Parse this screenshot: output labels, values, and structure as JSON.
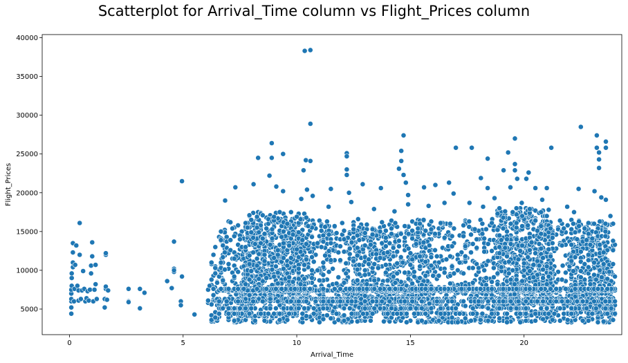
{
  "chart_data": {
    "type": "scatter",
    "title": "Scatterplot for Arrival_Time column vs Flight_Prices column",
    "xlabel": "Arrival_Time",
    "ylabel": "Flight_Prices",
    "xlim": [
      -1.2,
      24.3
    ],
    "ylim": [
      1700,
      40400
    ],
    "xticks": [
      0,
      5,
      10,
      15,
      20,
      25
    ],
    "yticks": [
      5000,
      10000,
      15000,
      20000,
      25000,
      30000,
      35000,
      40000
    ],
    "grid": false,
    "color": "#1f77b4",
    "series": [
      {
        "points": [
          [
            0.08,
            4400
          ],
          [
            0.08,
            5200
          ],
          [
            0.08,
            6000
          ],
          [
            0.08,
            6300
          ],
          [
            0.08,
            7000
          ],
          [
            0.08,
            7500
          ],
          [
            0.1,
            8000
          ],
          [
            0.1,
            9000
          ],
          [
            0.1,
            9600
          ],
          [
            0.15,
            10400
          ],
          [
            0.15,
            11000
          ],
          [
            0.15,
            12300
          ],
          [
            0.15,
            13500
          ],
          [
            0.2,
            6000
          ],
          [
            0.22,
            7600
          ],
          [
            0.25,
            10700
          ],
          [
            0.3,
            13200
          ],
          [
            0.35,
            8000
          ],
          [
            0.4,
            6100
          ],
          [
            0.4,
            7400
          ],
          [
            0.45,
            12000
          ],
          [
            0.45,
            16100
          ],
          [
            0.5,
            6300
          ],
          [
            0.55,
            7400
          ],
          [
            0.6,
            9900
          ],
          [
            0.65,
            7600
          ],
          [
            0.7,
            6000
          ],
          [
            0.75,
            6400
          ],
          [
            0.8,
            7300
          ],
          [
            0.85,
            6100
          ],
          [
            0.9,
            7500
          ],
          [
            0.95,
            9600
          ],
          [
            0.95,
            10600
          ],
          [
            1.0,
            11800
          ],
          [
            1.0,
            13600
          ],
          [
            1.05,
            6000
          ],
          [
            1.1,
            7500
          ],
          [
            1.15,
            8200
          ],
          [
            1.15,
            10700
          ],
          [
            1.2,
            6300
          ],
          [
            1.55,
            5200
          ],
          [
            1.55,
            6300
          ],
          [
            1.6,
            7600
          ],
          [
            1.6,
            7900
          ],
          [
            1.6,
            12000
          ],
          [
            1.6,
            12200
          ],
          [
            1.65,
            6200
          ],
          [
            1.7,
            7400
          ],
          [
            2.6,
            6000
          ],
          [
            2.6,
            7600
          ],
          [
            2.6,
            5900
          ],
          [
            3.1,
            5100
          ],
          [
            3.1,
            7600
          ],
          [
            3.3,
            7100
          ],
          [
            4.3,
            8600
          ],
          [
            4.5,
            7700
          ],
          [
            4.6,
            9800
          ],
          [
            4.6,
            10200
          ],
          [
            4.6,
            13700
          ],
          [
            4.6,
            10000
          ],
          [
            4.9,
            6000
          ],
          [
            4.9,
            5500
          ],
          [
            4.95,
            9200
          ],
          [
            4.95,
            21500
          ],
          [
            5.5,
            4300
          ],
          [
            6.1,
            5800
          ],
          [
            6.1,
            7500
          ],
          [
            6.1,
            6100
          ],
          [
            6.35,
            3400
          ],
          [
            6.4,
            7800
          ],
          [
            6.45,
            4500
          ],
          [
            6.5,
            7200
          ],
          [
            6.6,
            5400
          ],
          [
            6.7,
            9000
          ],
          [
            6.7,
            11500
          ],
          [
            6.8,
            13800
          ],
          [
            6.85,
            19000
          ],
          [
            6.9,
            4400
          ],
          [
            7.0,
            3600
          ],
          [
            7.0,
            10200
          ],
          [
            7.1,
            5800
          ],
          [
            7.2,
            4500
          ],
          [
            7.3,
            8300
          ],
          [
            7.3,
            14700
          ],
          [
            7.3,
            20700
          ],
          [
            7.4,
            6200
          ],
          [
            7.5,
            7000
          ],
          [
            7.6,
            12000
          ],
          [
            7.7,
            4600
          ],
          [
            7.8,
            9300
          ],
          [
            7.9,
            15900
          ],
          [
            8.0,
            4300
          ],
          [
            8.0,
            6800
          ],
          [
            8.1,
            21100
          ],
          [
            8.1,
            13300
          ],
          [
            8.2,
            10000
          ],
          [
            8.3,
            24500
          ],
          [
            8.3,
            17500
          ],
          [
            8.4,
            7800
          ],
          [
            8.5,
            11700
          ],
          [
            8.6,
            5800
          ],
          [
            8.7,
            14800
          ],
          [
            8.8,
            22200
          ],
          [
            8.9,
            26400
          ],
          [
            8.9,
            24500
          ],
          [
            9.0,
            9500
          ],
          [
            9.1,
            20800
          ],
          [
            9.2,
            12700
          ],
          [
            9.3,
            16600
          ],
          [
            9.4,
            25000
          ],
          [
            9.4,
            20200
          ],
          [
            9.5,
            13900
          ],
          [
            9.6,
            11000
          ],
          [
            9.7,
            8200
          ],
          [
            9.8,
            16600
          ],
          [
            9.9,
            5600
          ],
          [
            10.0,
            4200
          ],
          [
            10.2,
            19200
          ],
          [
            10.3,
            22900
          ],
          [
            10.35,
            38300
          ],
          [
            10.4,
            24200
          ],
          [
            10.45,
            20400
          ],
          [
            10.5,
            11100
          ],
          [
            10.6,
            38400
          ],
          [
            10.6,
            28900
          ],
          [
            10.6,
            24100
          ],
          [
            10.7,
            19600
          ],
          [
            10.7,
            16400
          ],
          [
            10.8,
            7900
          ],
          [
            10.9,
            13200
          ],
          [
            11.0,
            4500
          ],
          [
            11.2,
            10200
          ],
          [
            11.4,
            18200
          ],
          [
            11.5,
            20500
          ],
          [
            11.7,
            14700
          ],
          [
            11.9,
            6000
          ],
          [
            12.0,
            3800
          ],
          [
            12.2,
            25100
          ],
          [
            12.2,
            24700
          ],
          [
            12.2,
            23000
          ],
          [
            12.2,
            22300
          ],
          [
            12.3,
            20000
          ],
          [
            12.4,
            18800
          ],
          [
            12.6,
            9800
          ],
          [
            12.7,
            16600
          ],
          [
            12.9,
            21100
          ],
          [
            13.0,
            5200
          ],
          [
            13.2,
            12800
          ],
          [
            13.4,
            17900
          ],
          [
            13.6,
            14700
          ],
          [
            13.7,
            20600
          ],
          [
            13.8,
            8600
          ],
          [
            13.9,
            3600
          ],
          [
            14.1,
            11400
          ],
          [
            14.3,
            17600
          ],
          [
            14.5,
            23100
          ],
          [
            14.6,
            24100
          ],
          [
            14.6,
            25400
          ],
          [
            14.7,
            27400
          ],
          [
            14.7,
            22300
          ],
          [
            14.8,
            21300
          ],
          [
            14.9,
            19700
          ],
          [
            14.9,
            18500
          ],
          [
            15.0,
            10900
          ],
          [
            15.2,
            4100
          ],
          [
            15.4,
            13900
          ],
          [
            15.6,
            20700
          ],
          [
            15.8,
            18300
          ],
          [
            15.9,
            7300
          ],
          [
            16.1,
            21000
          ],
          [
            16.3,
            15200
          ],
          [
            16.5,
            18700
          ],
          [
            16.7,
            21300
          ],
          [
            16.9,
            19900
          ],
          [
            17.0,
            25800
          ],
          [
            17.2,
            12100
          ],
          [
            17.4,
            4400
          ],
          [
            17.6,
            18700
          ],
          [
            17.7,
            25800
          ],
          [
            17.9,
            9400
          ],
          [
            18.1,
            21900
          ],
          [
            18.2,
            18200
          ],
          [
            18.4,
            24400
          ],
          [
            18.4,
            20600
          ],
          [
            18.6,
            16600
          ],
          [
            18.7,
            19300
          ],
          [
            18.9,
            3700
          ],
          [
            19.1,
            22900
          ],
          [
            19.3,
            25200
          ],
          [
            19.4,
            20700
          ],
          [
            19.6,
            27000
          ],
          [
            19.6,
            23700
          ],
          [
            19.6,
            22900
          ],
          [
            19.7,
            21800
          ],
          [
            19.8,
            3600
          ],
          [
            19.9,
            18700
          ],
          [
            20.0,
            7000
          ],
          [
            20.1,
            21800
          ],
          [
            20.2,
            22600
          ],
          [
            20.3,
            16400
          ],
          [
            20.5,
            20600
          ],
          [
            20.6,
            12300
          ],
          [
            20.7,
            4600
          ],
          [
            20.8,
            19100
          ],
          [
            21.0,
            20600
          ],
          [
            21.1,
            13700
          ],
          [
            21.2,
            25800
          ],
          [
            21.3,
            3600
          ],
          [
            21.5,
            15500
          ],
          [
            21.7,
            10600
          ],
          [
            21.9,
            18200
          ],
          [
            22.0,
            4500
          ],
          [
            22.2,
            17500
          ],
          [
            22.4,
            20500
          ],
          [
            22.5,
            28500
          ],
          [
            22.6,
            11700
          ],
          [
            22.8,
            4800
          ],
          [
            23.0,
            16000
          ],
          [
            23.1,
            20200
          ],
          [
            23.2,
            27400
          ],
          [
            23.2,
            25800
          ],
          [
            23.3,
            25200
          ],
          [
            23.3,
            24300
          ],
          [
            23.3,
            23200
          ],
          [
            23.4,
            19400
          ],
          [
            23.6,
            25800
          ],
          [
            23.6,
            26600
          ],
          [
            23.6,
            19100
          ],
          [
            23.7,
            14900
          ],
          [
            23.8,
            3500
          ],
          [
            23.8,
            17000
          ]
        ]
      }
    ],
    "dense_regions": [
      {
        "x": [
          6.2,
          24.0
        ],
        "y": [
          3300,
          16500
        ],
        "n": 1900
      },
      {
        "x": [
          7.7,
          10.5
        ],
        "y": [
          6000,
          17500
        ],
        "n": 500
      },
      {
        "x": [
          18.8,
          21.3
        ],
        "y": [
          5500,
          18000
        ],
        "n": 500
      },
      {
        "x": [
          12.0,
          16.0
        ],
        "y": [
          5000,
          15500
        ],
        "n": 350
      },
      {
        "x": [
          22.0,
          24.0
        ],
        "y": [
          4500,
          16500
        ],
        "n": 250
      }
    ],
    "dense_bands": [
      {
        "y": 7400,
        "x": [
          6.5,
          24.0
        ],
        "n": 300
      },
      {
        "y": 7600,
        "x": [
          6.5,
          24.0
        ],
        "n": 200
      },
      {
        "y": 6300,
        "x": [
          6.5,
          24.0
        ],
        "n": 150
      },
      {
        "y": 6000,
        "x": [
          6.5,
          24.0
        ],
        "n": 150
      },
      {
        "y": 5100,
        "x": [
          6.5,
          24.0
        ],
        "n": 100
      },
      {
        "y": 4400,
        "x": [
          6.5,
          24.0
        ],
        "n": 90
      }
    ]
  }
}
